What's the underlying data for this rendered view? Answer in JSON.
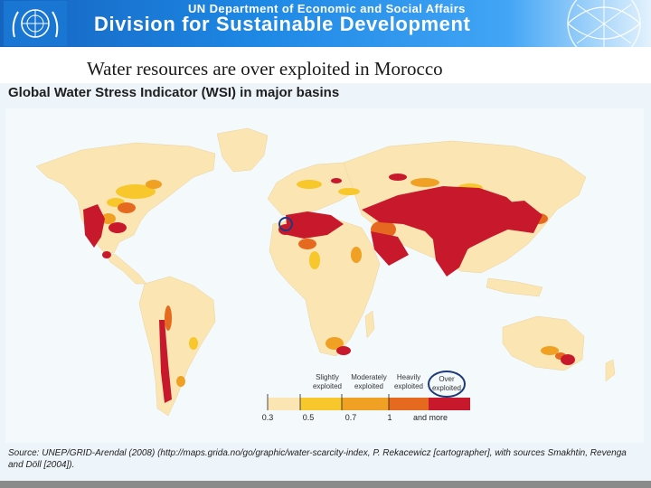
{
  "header": {
    "sub_title": "UN Department of Economic and Social Affairs",
    "main_title": "Division for Sustainable Development"
  },
  "slide": {
    "title": "Water resources are over exploited in Morocco"
  },
  "map": {
    "heading": "Global Water Stress Indicator (WSI) in major basins",
    "highlight": "Morocco",
    "legend": {
      "categories": [
        {
          "label_line1": "Slightly",
          "label_line2": "exploited",
          "color": "#f7c72b"
        },
        {
          "label_line1": "Moderately",
          "label_line2": "exploited",
          "color": "#f0a023"
        },
        {
          "label_line1": "Heavily",
          "label_line2": "exploited",
          "color": "#e56a1f"
        },
        {
          "label_line1": "Over",
          "label_line2": "exploited",
          "color": "#c8182c"
        }
      ],
      "base_color": "#fbe6b3",
      "ticks": [
        "0.3",
        "0.5",
        "0.7",
        "1",
        "and more"
      ]
    },
    "colors": {
      "ocean": "#eef5fa",
      "land": "#fbe6b3",
      "highlight_ring": "#1f3a7a"
    },
    "source_text": "Source: UNEP/GRID-Arendal (2008) (http://maps.grida.no/go/graphic/water-scarcity-index, P. Rekacewicz [cartographer], with sources Smakhtin, Revenga and Döll [2004])."
  }
}
